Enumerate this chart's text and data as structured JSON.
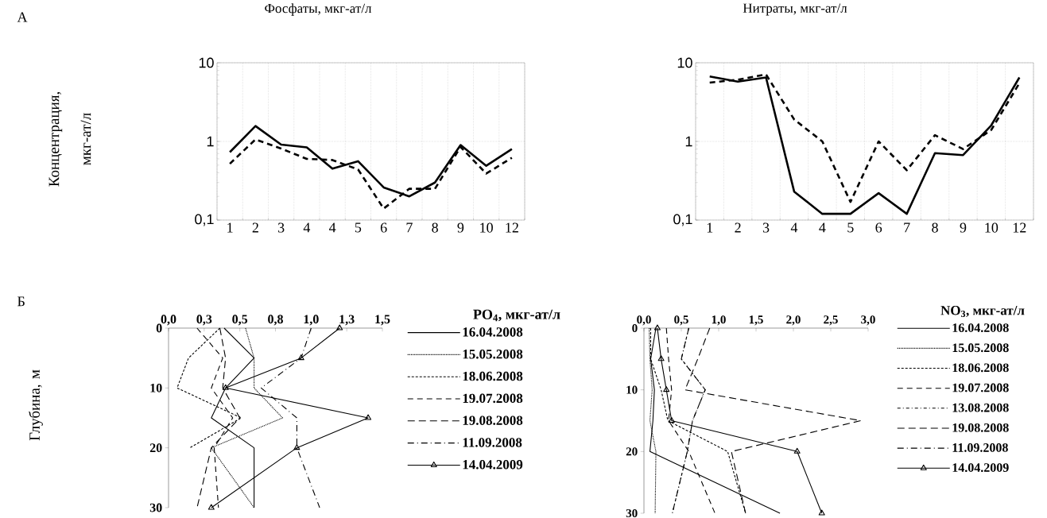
{
  "chart_data": [
    {
      "type": "line",
      "title": "Фосфаты, мкг-ат/л",
      "ylabel": "Концентрация, мкг-ат/л",
      "annotations": [
        "А"
      ],
      "log": "y",
      "grid": true,
      "categories": [
        "1",
        "2",
        "3",
        "4",
        "4",
        "5",
        "6",
        "7",
        "8",
        "9",
        "10",
        "12"
      ],
      "ylim": [
        0.1,
        10
      ],
      "yticks": [
        {
          "value": 0.1,
          "label": "0,1"
        },
        1,
        10
      ],
      "series": [
        {
          "color": "#000000",
          "line_style": "solid",
          "values": [
            0.73,
            1.57,
            0.91,
            0.84,
            0.45,
            0.56,
            0.26,
            0.2,
            0.3,
            0.9,
            0.49,
            0.8
          ]
        },
        {
          "color": "#000000",
          "line_style": "dashed",
          "values": [
            0.52,
            1.06,
            0.81,
            0.6,
            0.58,
            0.44,
            0.14,
            0.25,
            0.25,
            0.85,
            0.39,
            0.62
          ]
        }
      ]
    },
    {
      "type": "line",
      "title": "Нитраты, мкг-ат/л",
      "log": "y",
      "grid": true,
      "categories": [
        "1",
        "2",
        "3",
        "4",
        "4",
        "5",
        "6",
        "7",
        "8",
        "9",
        "10",
        "12"
      ],
      "ylim": [
        0.1,
        10
      ],
      "yticks": [
        {
          "value": 0.1,
          "label": "0,1"
        },
        1,
        10
      ],
      "series": [
        {
          "color": "#000000",
          "line_style": "solid",
          "values": [
            6.7,
            5.75,
            6.5,
            0.23,
            0.12,
            0.12,
            0.22,
            0.12,
            0.71,
            0.67,
            1.6,
            6.5
          ]
        },
        {
          "color": "#000000",
          "line_style": "dashed",
          "values": [
            5.6,
            6.1,
            7.1,
            1.9,
            1.0,
            0.17,
            1.0,
            0.43,
            1.2,
            0.8,
            1.4,
            5.5
          ]
        }
      ]
    },
    {
      "type": "line",
      "ylabel": "Глубина, м",
      "legend_title": "PO$_{4}$, мкг-ат/л",
      "annotations": [
        "Б"
      ],
      "legend": "right",
      "xlim": [
        0,
        1.5
      ],
      "xticks": [
        {
          "value": 0,
          "label": "0,0"
        },
        {
          "value": 0.25,
          "label": "0,3"
        },
        {
          "value": 0.5,
          "label": "0,5"
        },
        {
          "value": 0.75,
          "label": "0,8"
        },
        {
          "value": 1,
          "label": "1,0"
        },
        {
          "value": 1.25,
          "label": "1,3"
        },
        {
          "value": 1.5,
          "label": "1,5"
        }
      ],
      "ylim": [
        30,
        0
      ],
      "yticks": [
        0,
        10,
        20,
        30
      ],
      "series": [
        {
          "name": "16.04.2008",
          "color": "#000000",
          "line_style": "solid",
          "marker": "none",
          "x": [
            0.39,
            0.6,
            0.4,
            0.3,
            0.6,
            0.6
          ],
          "values": [
            0,
            5,
            10,
            15,
            20,
            30
          ]
        },
        {
          "name": "15.05.2008",
          "color": "#000000",
          "line_style": "dotted",
          "marker": "none",
          "x": [
            0.54,
            0.6,
            0.6,
            0.8,
            0.3,
            0.6
          ],
          "values": [
            0,
            5,
            10,
            15,
            20,
            30
          ]
        },
        {
          "name": "18.06.2008",
          "color": "#000000",
          "line_style": "densely dashed",
          "marker": "none",
          "x": [
            0.36,
            0.14,
            0.06,
            0.51,
            0.15
          ],
          "values": [
            0,
            5,
            10,
            15,
            20
          ]
        },
        {
          "name": "19.07.2008",
          "color": "#000000",
          "line_style": "dashed",
          "marker": "none",
          "x": [
            0.2,
            0.38,
            0.3,
            0.45,
            0.32,
            0.35
          ],
          "values": [
            0,
            5,
            10,
            15,
            20,
            30
          ]
        },
        {
          "name": "19.08.2008",
          "color": "#000000",
          "line_style": "long dashed",
          "marker": "none",
          "x": [
            0.36,
            0.4,
            0.38,
            0.5,
            0.3,
            0.2
          ],
          "values": [
            0,
            5,
            10,
            15,
            20,
            30
          ]
        },
        {
          "name": "11.09.2008",
          "color": "#000000",
          "line_style": "dashdotted",
          "marker": "none",
          "x": [
            1.0,
            0.93,
            0.65,
            0.9,
            0.9,
            1.06
          ],
          "values": [
            0,
            5,
            10,
            15,
            20,
            30
          ]
        },
        {
          "name": "14.04.2009",
          "color": "#000000",
          "line_style": "solid",
          "marker": "triangle",
          "x": [
            1.2,
            0.93,
            0.4,
            1.4,
            0.9,
            0.3
          ],
          "values": [
            0,
            5,
            10,
            15,
            20,
            30
          ]
        }
      ]
    },
    {
      "type": "line",
      "legend_title": "NO$_{3}$, мкг-ат/л",
      "legend": "right",
      "xlim": [
        0,
        3
      ],
      "xticks": [
        {
          "value": 0,
          "label": "0,0"
        },
        {
          "value": 0.5,
          "label": "0,5"
        },
        {
          "value": 1,
          "label": "1,0"
        },
        {
          "value": 1.5,
          "label": "1,5"
        },
        {
          "value": 2,
          "label": "2,0"
        },
        {
          "value": 2.5,
          "label": "2,5"
        },
        {
          "value": 3,
          "label": "3,0"
        }
      ],
      "ylim": [
        30,
        0
      ],
      "yticks": [
        0,
        10,
        20,
        30
      ],
      "series": [
        {
          "name": "16.04.2008",
          "color": "#000000",
          "line_style": "solid",
          "marker": "none",
          "x": [
            0.16,
            0.09,
            0.14,
            0.12,
            0.08,
            1.82
          ],
          "values": [
            0,
            5,
            10,
            15,
            20,
            30
          ]
        },
        {
          "name": "15.05.2008",
          "color": "#000000",
          "line_style": "dotted",
          "marker": "none",
          "x": [
            0.07,
            0.08,
            0.11,
            0.08,
            0.16,
            0.15
          ],
          "values": [
            0,
            5,
            10,
            15,
            20,
            30
          ]
        },
        {
          "name": "18.06.2008",
          "color": "#000000",
          "line_style": "densely dashed",
          "marker": "none",
          "x": [
            0.09,
            0.09,
            0.23,
            0.32,
            1.12,
            1.36
          ],
          "values": [
            0,
            5,
            10,
            15,
            20,
            30
          ]
        },
        {
          "name": "19.07.2008",
          "color": "#000000",
          "line_style": "dashed",
          "marker": "none",
          "x": [
            0.3,
            0.33,
            0.37,
            0.33,
            0.6,
            0.95
          ],
          "values": [
            0,
            5,
            10,
            15,
            20,
            30
          ]
        },
        {
          "name": "13.08.2008",
          "color": "#000000",
          "line_style": "dashdotdotted",
          "marker": "none",
          "x": [
            0.6,
            0.5,
            0.82,
            0.65,
            0.58,
            0.38
          ],
          "values": [
            0,
            5,
            10,
            15,
            20,
            30
          ]
        },
        {
          "name": "19.08.2008",
          "color": "#000000",
          "line_style": "long dashed",
          "marker": "none",
          "x": [
            0.88,
            0.72,
            0.55,
            2.9,
            1.17,
            1.36
          ],
          "values": [
            0,
            5,
            10,
            15,
            20,
            30
          ]
        },
        {
          "name": "11.09.2008",
          "color": "#000000",
          "line_style": "dashdotted",
          "marker": "none",
          "x": [
            0.6,
            0.5,
            0.82,
            0.65,
            0.58,
            0.38
          ],
          "values": [
            0,
            5,
            10,
            15,
            20,
            30
          ]
        },
        {
          "name": "14.04.2009",
          "color": "#000000",
          "line_style": "solid",
          "marker": "triangle",
          "x": [
            0.18,
            0.23,
            0.3,
            0.37,
            2.05,
            2.38
          ],
          "values": [
            0,
            5,
            10,
            15,
            20,
            30
          ]
        }
      ]
    }
  ]
}
